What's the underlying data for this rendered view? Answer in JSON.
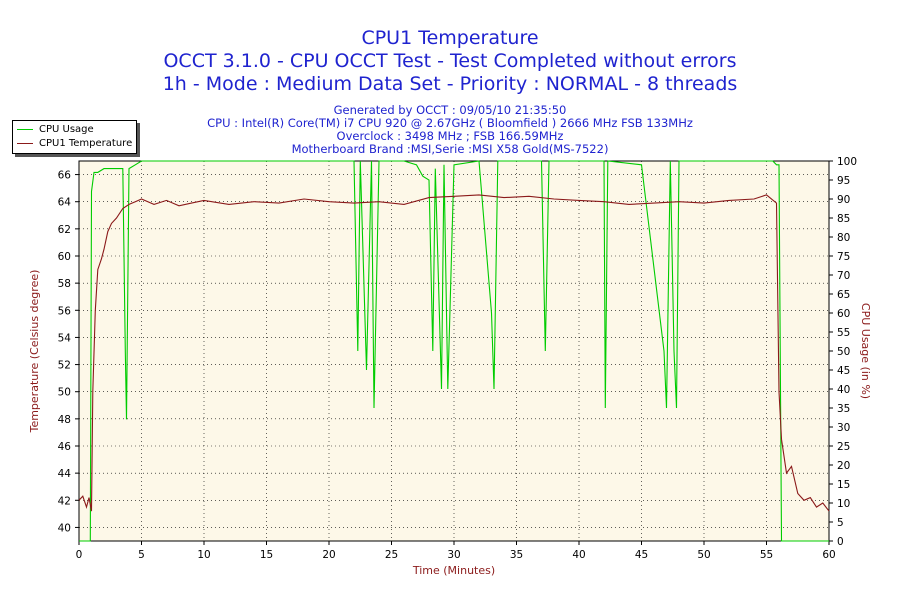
{
  "header": {
    "title": "CPU1 Temperature",
    "subtitle1": "OCCT 3.1.0 - CPU OCCT Test - Test Completed without errors",
    "subtitle2": "1h - Mode : Medium Data Set - Priority : NORMAL - 8 threads",
    "info": [
      "Generated by OCCT : 09/05/10 21:35:50",
      "CPU : Intel(R) Core(TM) i7 CPU 920 @ 2.67GHz ( Bloomfield ) 2666 MHz FSB 133MHz",
      "Overclock : 3498 MHz ; FSB 166.59MHz",
      "Motherboard Brand :MSI,Serie :MSI X58 Gold(MS-7522)"
    ]
  },
  "legend": {
    "items": [
      {
        "label": "CPU Usage",
        "color": "#00cc00"
      },
      {
        "label": "CPU1 Temperature",
        "color": "#8b1a1a"
      }
    ]
  },
  "colors": {
    "plot_background": "#fdf8e8",
    "grid": "#000000",
    "usage_line": "#00cc00",
    "temp_line": "#8b1a1a",
    "title_blue": "#1f23cf"
  },
  "chart_data": {
    "type": "line",
    "xlabel": "Time (Minutes)",
    "ylabel_left": "Temperature (Celsius degree)",
    "ylabel_right": "CPU Usage (in %)",
    "xlim": [
      0,
      60
    ],
    "ylim_left": [
      39,
      67
    ],
    "ylim_right": [
      0,
      100
    ],
    "x_ticks": [
      0,
      5,
      10,
      15,
      20,
      25,
      30,
      35,
      40,
      45,
      50,
      55,
      60
    ],
    "y_left_ticks": [
      40,
      42,
      44,
      46,
      48,
      50,
      52,
      54,
      56,
      58,
      60,
      62,
      64,
      66
    ],
    "y_right_ticks": [
      0,
      5,
      10,
      15,
      20,
      25,
      30,
      35,
      40,
      45,
      50,
      55,
      60,
      65,
      70,
      75,
      80,
      85,
      90,
      95,
      100
    ],
    "grid": true,
    "legend_position": "top-left",
    "series": [
      {
        "name": "CPU Usage",
        "axis": "right",
        "x": [
          0,
          0.9,
          1.0,
          1.2,
          1.5,
          2,
          2.5,
          3.5,
          3.7,
          3.8,
          4.0,
          4.5,
          5,
          6,
          8,
          10,
          15,
          20,
          21,
          22,
          22.3,
          22.5,
          23,
          23.4,
          23.6,
          24,
          25,
          26,
          27,
          27.5,
          28,
          28.3,
          28.5,
          29,
          29.2,
          29.5,
          30,
          32,
          33,
          33.2,
          33.5,
          35,
          37,
          37.3,
          37.6,
          40,
          42,
          42.1,
          42.3,
          45,
          46.8,
          47,
          47.3,
          47.6,
          47.8,
          48,
          50,
          52,
          54,
          55.5,
          55.8,
          56.0,
          56.2,
          58,
          60
        ],
        "y": [
          0,
          0,
          92,
          97,
          97,
          98,
          98,
          98,
          50,
          32,
          98,
          99,
          100,
          100,
          100,
          100,
          100,
          100,
          100,
          100,
          50,
          100,
          45,
          100,
          35,
          100,
          100,
          100,
          99,
          96,
          95,
          50,
          98,
          40,
          99,
          40,
          99,
          100,
          60,
          40,
          100,
          100,
          100,
          50,
          100,
          100,
          100,
          35,
          100,
          99,
          50,
          35,
          100,
          50,
          35,
          100,
          100,
          100,
          100,
          100,
          99,
          99,
          0,
          0,
          0
        ]
      },
      {
        "name": "CPU1 Temperature",
        "axis": "left",
        "x": [
          0,
          0.3,
          0.6,
          0.8,
          1.0,
          1.1,
          1.3,
          1.5,
          1.8,
          2.0,
          2.3,
          2.6,
          3.0,
          3.5,
          4.0,
          4.5,
          5,
          6,
          7,
          8,
          9,
          10,
          12,
          14,
          16,
          18,
          20,
          22,
          24,
          26,
          28,
          30,
          32,
          34,
          36,
          38,
          40,
          42,
          44,
          46,
          48,
          50,
          52,
          54,
          55,
          55.8,
          56.0,
          56.2,
          56.6,
          57,
          57.5,
          58,
          58.5,
          59,
          59.5,
          60
        ],
        "y": [
          42,
          42.3,
          41.5,
          42.2,
          41.2,
          50,
          56,
          59,
          59.8,
          60.5,
          61.8,
          62.4,
          62.8,
          63.5,
          63.8,
          64.0,
          64.2,
          63.8,
          64.1,
          63.7,
          63.9,
          64.1,
          63.8,
          64.0,
          63.9,
          64.2,
          64.0,
          63.9,
          64.0,
          63.8,
          64.3,
          64.4,
          64.5,
          64.3,
          64.4,
          64.2,
          64.1,
          64.0,
          63.8,
          63.9,
          64.0,
          63.9,
          64.1,
          64.2,
          64.5,
          63.9,
          50,
          46.5,
          44.0,
          44.5,
          42.5,
          42.0,
          42.2,
          41.5,
          41.8,
          41.2
        ]
      }
    ]
  }
}
